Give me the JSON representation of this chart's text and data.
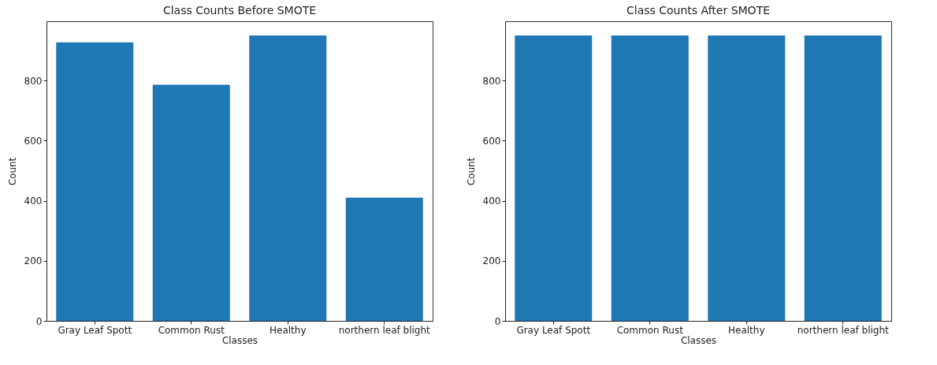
{
  "chart_data": [
    {
      "type": "bar",
      "title": "Class Counts Before SMOTE",
      "xlabel": "Classes",
      "ylabel": "Count",
      "categories": [
        "Gray Leaf Spott",
        "Common Rust",
        "Healthy",
        "northern leaf blight"
      ],
      "values": [
        927,
        786,
        950,
        410
      ],
      "color": "#1f77b4",
      "ylim": [
        0,
        997.5
      ],
      "yticks": [
        0,
        200,
        400,
        600,
        800
      ],
      "grid": false
    },
    {
      "type": "bar",
      "title": "Class Counts After SMOTE",
      "xlabel": "Classes",
      "ylabel": "Count",
      "categories": [
        "Gray Leaf Spott",
        "Common Rust",
        "Healthy",
        "northern leaf blight"
      ],
      "values": [
        950,
        950,
        950,
        950
      ],
      "color": "#1f77b4",
      "ylim": [
        0,
        997.5
      ],
      "yticks": [
        0,
        200,
        400,
        600,
        800
      ],
      "grid": false
    }
  ]
}
